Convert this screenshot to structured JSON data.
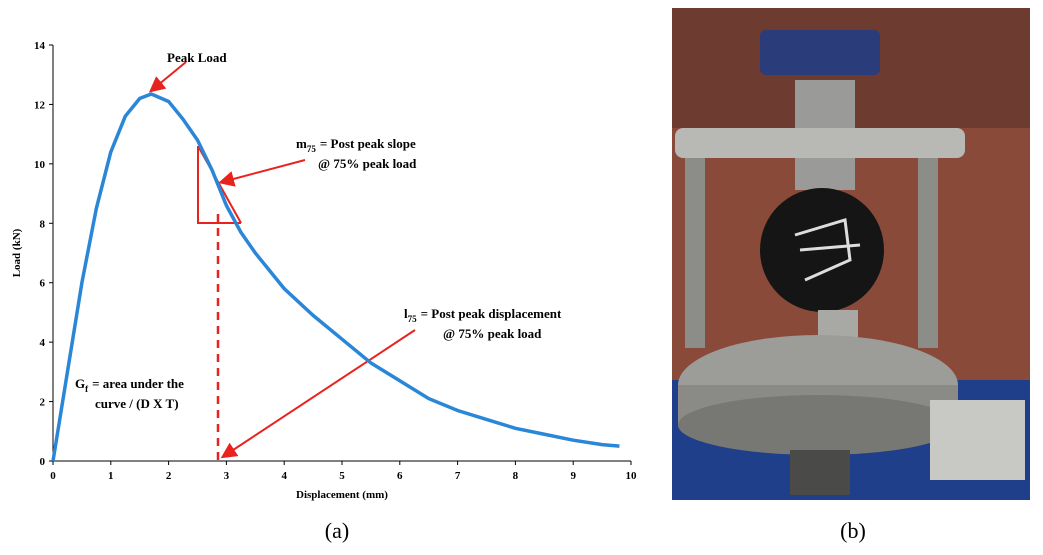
{
  "chart_data": {
    "type": "line",
    "x_label": "Displacement (mm)",
    "y_label": "Load (kN)",
    "x": [
      0,
      0.25,
      0.5,
      0.75,
      1,
      1.25,
      1.5,
      1.7,
      2,
      2.25,
      2.5,
      2.75,
      3,
      3.25,
      3.5,
      4,
      4.5,
      5,
      5.5,
      6,
      6.5,
      7,
      7.5,
      8,
      8.5,
      9,
      9.5,
      9.8
    ],
    "series": [
      {
        "color": "#2a86d6",
        "values": [
          0,
          3,
          6,
          8.5,
          10.4,
          11.6,
          12.2,
          12.35,
          12.1,
          11.5,
          10.8,
          9.8,
          8.6,
          7.7,
          7.0,
          5.8,
          4.9,
          4.1,
          3.3,
          2.7,
          2.1,
          1.7,
          1.4,
          1.1,
          0.9,
          0.7,
          0.55,
          0.5
        ]
      }
    ],
    "xlim": [
      0,
      10
    ],
    "ylim": [
      0,
      14
    ],
    "xticks": [
      0,
      1,
      2,
      3,
      4,
      5,
      6,
      7,
      8,
      9,
      10
    ],
    "yticks": [
      0,
      2,
      4,
      6,
      8,
      10,
      12,
      14
    ],
    "annotations": [
      {
        "text": "Peak Load"
      },
      {
        "symbol": "m",
        "sub": "75",
        "text": "= Post peak slope",
        "line2": "@ 75% peak load"
      },
      {
        "symbol": "l",
        "sub": "75",
        "text": "= Post peak displacement",
        "line2": "@ 75% peak load"
      },
      {
        "symbol": "G",
        "sub": "f",
        "text": "= area under the",
        "line2": "curve / (D X T)"
      }
    ]
  },
  "captions": [
    "(a)",
    "(b)"
  ]
}
